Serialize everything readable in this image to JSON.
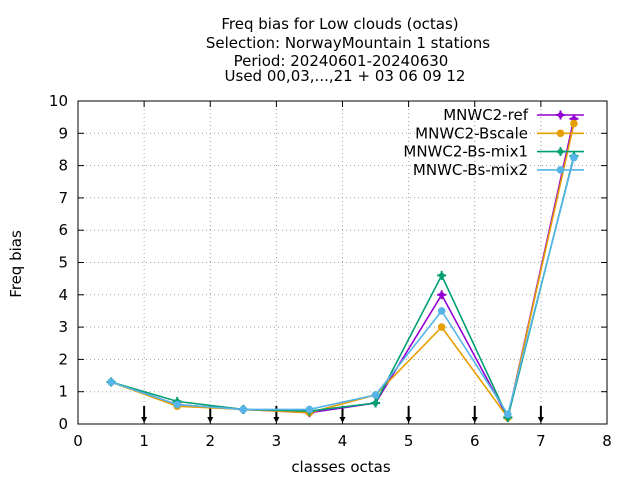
{
  "chart_data": {
    "type": "line",
    "title_lines": [
      "Freq bias  for Low clouds (octas)",
      "Selection: NorwayMountain      1 stations",
      "Period: 20240601-20240630",
      "Used 00,03,...,21 + 03 06 09 12"
    ],
    "xlabel": "classes octas",
    "ylabel": "Freq bias",
    "xlim": [
      0,
      8
    ],
    "ylim": [
      0,
      10
    ],
    "xticks": [
      0,
      1,
      2,
      3,
      4,
      5,
      6,
      7,
      8
    ],
    "yticks": [
      0,
      1,
      2,
      3,
      4,
      5,
      6,
      7,
      8,
      9,
      10
    ],
    "grid": true,
    "legend_position": "top-right",
    "x": [
      0.5,
      1.5,
      2.5,
      3.5,
      4.5,
      5.5,
      6.5,
      7.5
    ],
    "series": [
      {
        "name": "MNWC2-ref",
        "color": "#9400d3",
        "marker": "plus-filled",
        "values": [
          1.3,
          0.6,
          0.45,
          0.35,
          0.65,
          4.0,
          0.2,
          9.45
        ]
      },
      {
        "name": "MNWC2-Bscale",
        "color": "#e69f00",
        "marker": "circle",
        "values": [
          1.3,
          0.55,
          0.45,
          0.35,
          0.9,
          3.0,
          0.2,
          9.3
        ]
      },
      {
        "name": "MNWC2-Bs-mix1",
        "color": "#009e73",
        "marker": "plus-filled",
        "values": [
          1.3,
          0.7,
          0.45,
          0.4,
          0.65,
          4.6,
          0.2,
          8.3
        ]
      },
      {
        "name": "MNWC-Bs-mix2",
        "color": "#56b4e9",
        "marker": "circle",
        "values": [
          1.3,
          0.6,
          0.45,
          0.45,
          0.9,
          3.5,
          0.3,
          8.25
        ]
      }
    ],
    "annotations": {
      "arrow_marker_x": [
        1,
        2,
        3,
        4,
        5,
        6,
        7
      ],
      "arrow_marker_color": "#000000"
    }
  }
}
